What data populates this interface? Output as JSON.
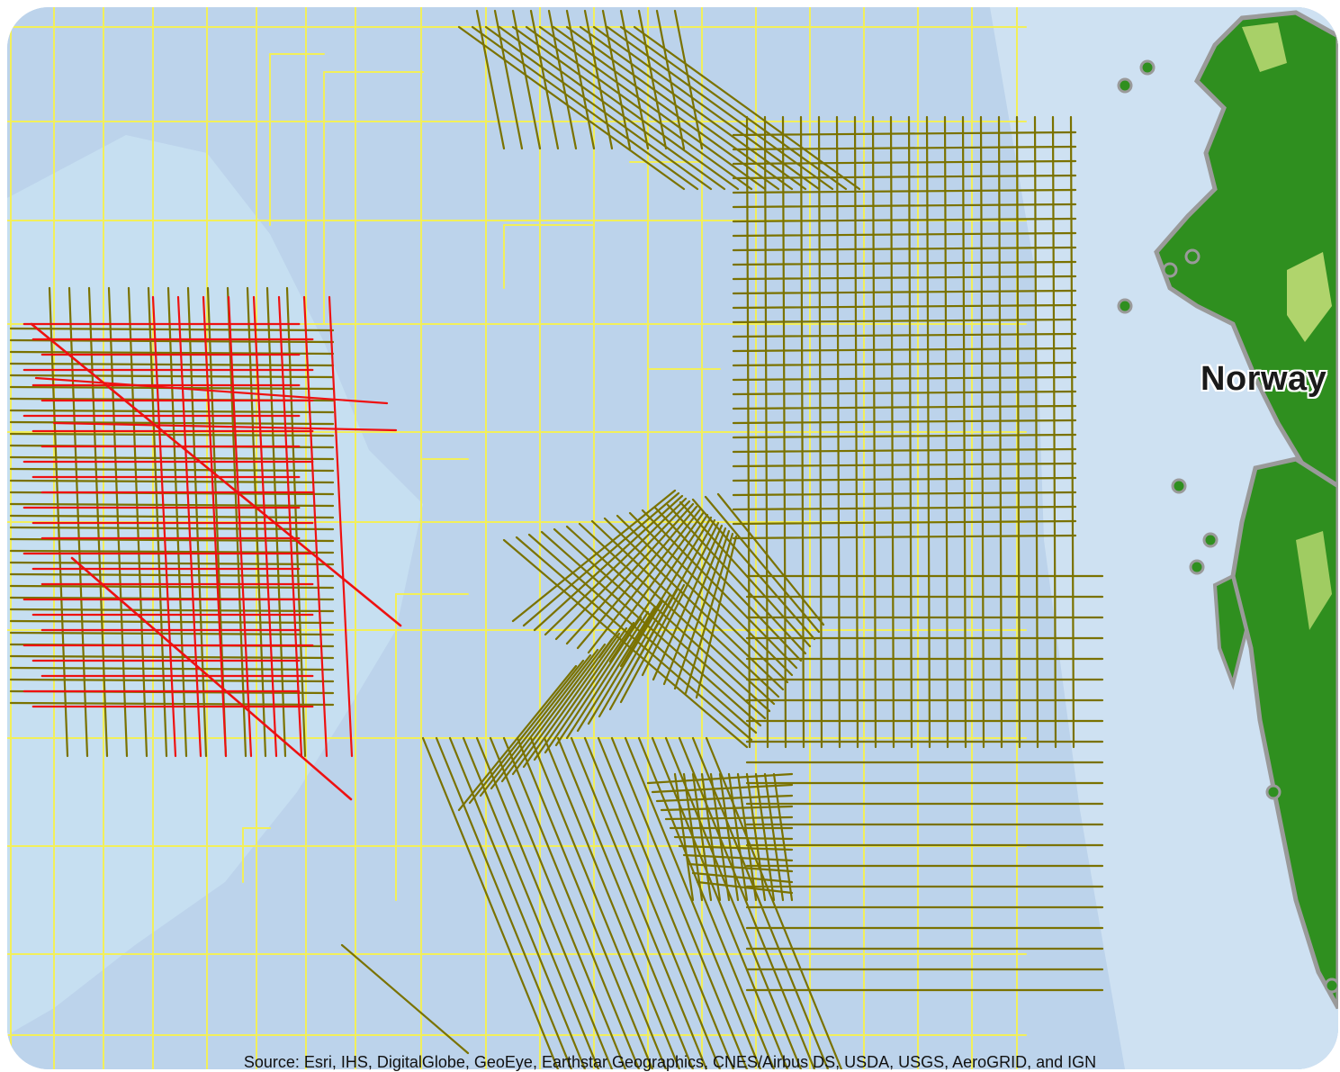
{
  "map": {
    "country_label": "Norway",
    "attribution": "Source: Esri, IHS, DigitalGlobe, GeoEye, Earthstar Geographics, CNES/Airbus DS, USDA, USGS, AeroGRID, and IGN"
  },
  "colors": {
    "ocean": "#bcd3eb",
    "shallow_water": "#c6e0f2",
    "license_boundary": "#f2ef5a",
    "survey_line": "#7a7200",
    "highlighted_survey_line": "#ee1111",
    "land_green": "#2f8f1f",
    "land_light": "#c7e07a",
    "coast_outline": "#9a9a9a"
  },
  "layers": [
    "license-block-boundaries",
    "seismic-survey-lines",
    "highlighted-survey-lines",
    "coastline"
  ]
}
